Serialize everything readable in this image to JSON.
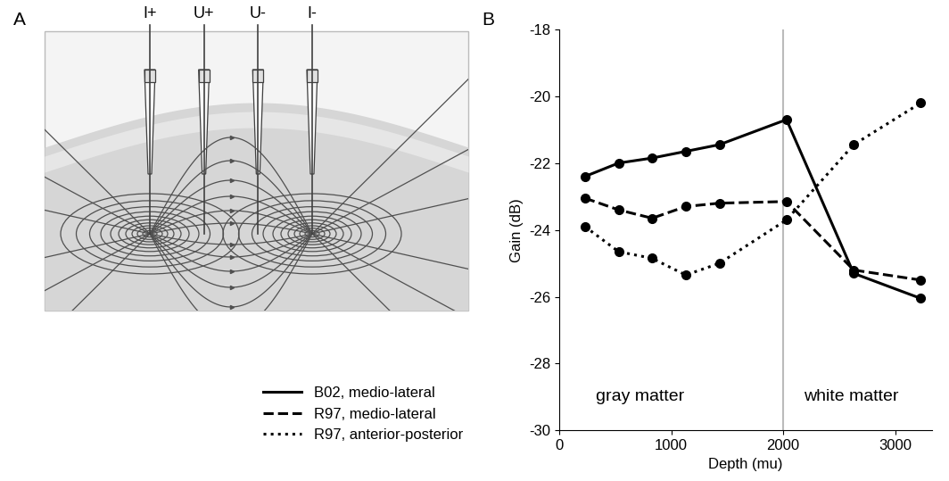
{
  "diagram": {
    "label": "A",
    "electrodes": [
      "I+",
      "U+",
      "U-",
      "I-"
    ]
  },
  "chart_data": {
    "label": "B",
    "type": "line",
    "x": [
      230,
      530,
      830,
      1130,
      1430,
      2030,
      2630,
      3230
    ],
    "series": [
      {
        "name": "B02, medio-lateral",
        "color": "#000000",
        "marker": "circle",
        "line_style": "solid",
        "values": [
          -22.4,
          -22.0,
          -21.85,
          -21.65,
          -21.45,
          -20.7,
          -25.3,
          -26.05
        ]
      },
      {
        "name": "R97, medio-lateral",
        "color": "#000000",
        "marker": "circle",
        "line_style": "dashed",
        "values": [
          -23.05,
          -23.4,
          -23.65,
          -23.3,
          -23.2,
          -23.15,
          -25.2,
          -25.5
        ]
      },
      {
        "name": "R97, anterior-posterior",
        "color": "#000000",
        "marker": "circle",
        "line_style": "dotted",
        "values": [
          -23.9,
          -24.65,
          -24.85,
          -25.35,
          -25.0,
          -23.7,
          -21.45,
          -20.2
        ]
      }
    ],
    "xlabel": "Depth (mu)",
    "ylabel": "Gain (dB)",
    "xlim": [
      0,
      3330
    ],
    "ylim": [
      -30,
      -18
    ],
    "xticks": [
      0,
      1000,
      2000,
      3000
    ],
    "yticks": [
      -30,
      -28,
      -26,
      -24,
      -22,
      -20,
      -18
    ],
    "boundary": 2000,
    "annotations": [
      {
        "text": "gray matter",
        "x": 330,
        "y": -29.0
      },
      {
        "text": "white matter",
        "x": 2180,
        "y": -29.0
      }
    ],
    "legend": "lower left",
    "grid": false
  }
}
